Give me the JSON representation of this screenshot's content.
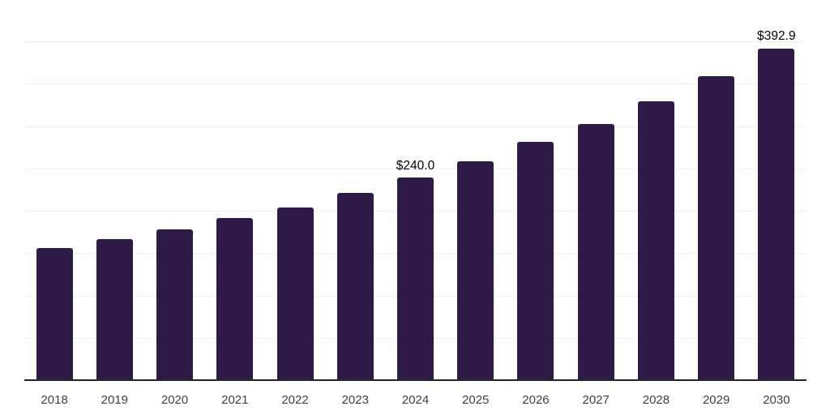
{
  "chart_data": {
    "type": "bar",
    "title": "",
    "xlabel": "",
    "ylabel": "",
    "categories": [
      "2018",
      "2019",
      "2020",
      "2021",
      "2022",
      "2023",
      "2024",
      "2025",
      "2026",
      "2027",
      "2028",
      "2029",
      "2030"
    ],
    "values": [
      157,
      167.5,
      179,
      192,
      205,
      222,
      240.0,
      259.5,
      282,
      304,
      330,
      360,
      392.9
    ],
    "data_labels": {
      "2024": "$240.0",
      "2030": "$392.9"
    },
    "ylim": [
      0,
      450
    ],
    "gridline_step": 50,
    "grid": true,
    "legend": false,
    "colors": {
      "bar": "#2e1a47",
      "gridline": "#f0f0f0",
      "axis_line": "#262626",
      "tick_label": "#404040",
      "data_label": "#000000",
      "background": "#ffffff"
    }
  }
}
